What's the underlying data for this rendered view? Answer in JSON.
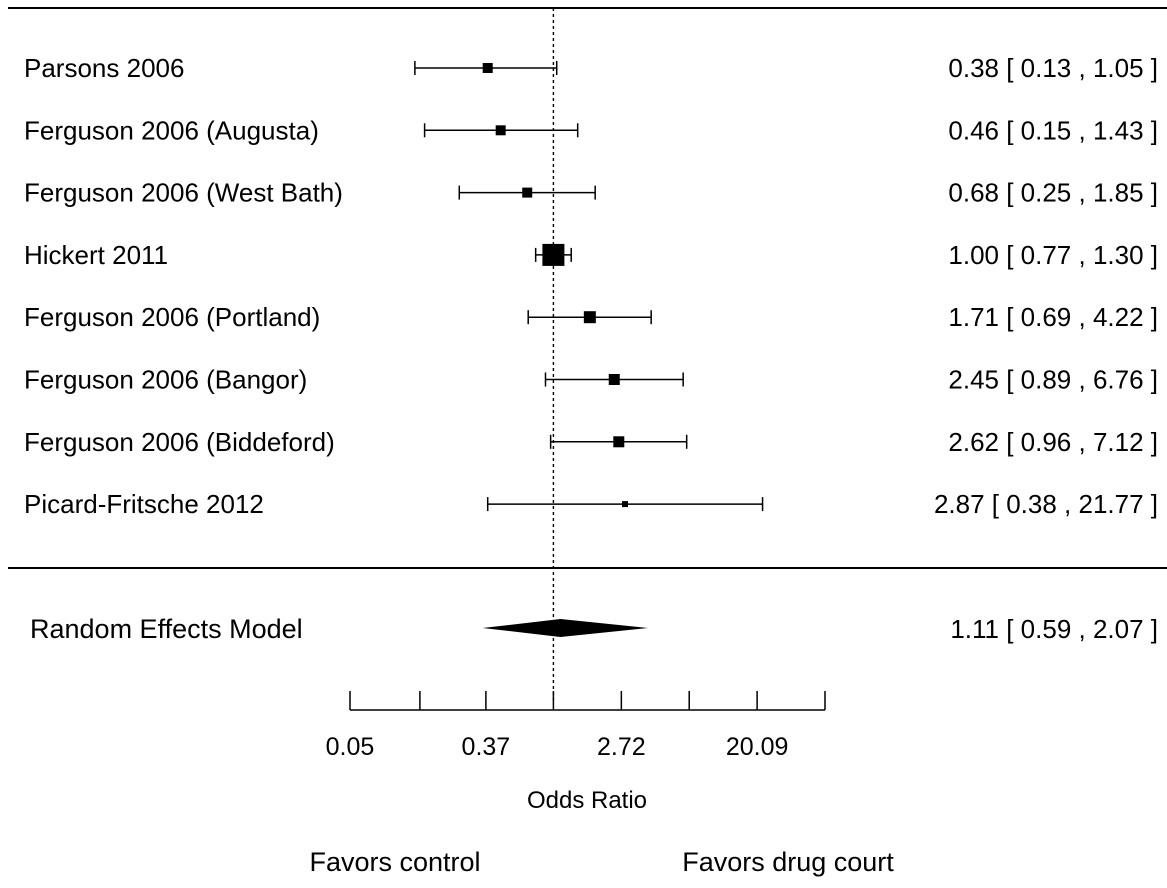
{
  "chart_data": {
    "type": "forest",
    "x_scale": "log",
    "axis_label": "Odds Ratio",
    "reference_line": 1.0,
    "xlim": [
      0.05,
      54.6
    ],
    "ticks": [
      {
        "value": 0.05,
        "label": "0.05"
      },
      {
        "value": 0.14,
        "label": ""
      },
      {
        "value": 0.37,
        "label": "0.37"
      },
      {
        "value": 1.0,
        "label": ""
      },
      {
        "value": 2.72,
        "label": "2.72"
      },
      {
        "value": 7.39,
        "label": ""
      },
      {
        "value": 20.09,
        "label": "20.09"
      },
      {
        "value": 54.6,
        "label": ""
      }
    ],
    "studies": [
      {
        "name": "Parsons 2006",
        "or": 0.38,
        "lower": 0.13,
        "upper": 1.05,
        "ci_text": "0.38 [ 0.13 ,  1.05 ]",
        "weight": 1.0
      },
      {
        "name": "Ferguson 2006 (Augusta)",
        "or": 0.46,
        "lower": 0.15,
        "upper": 1.43,
        "ci_text": "0.46 [ 0.15 ,  1.43 ]",
        "weight": 1.0
      },
      {
        "name": "Ferguson 2006 (West Bath)",
        "or": 0.68,
        "lower": 0.25,
        "upper": 1.85,
        "ci_text": "0.68 [ 0.25 ,  1.85 ]",
        "weight": 1.0
      },
      {
        "name": "Hickert 2011",
        "or": 1.0,
        "lower": 0.77,
        "upper": 1.3,
        "ci_text": "1.00 [ 0.77 ,  1.30 ]",
        "weight": 2.2
      },
      {
        "name": "Ferguson 2006 (Portland)",
        "or": 1.71,
        "lower": 0.69,
        "upper": 4.22,
        "ci_text": "1.71 [ 0.69 ,  4.22 ]",
        "weight": 1.2
      },
      {
        "name": "Ferguson 2006 (Bangor)",
        "or": 2.45,
        "lower": 0.89,
        "upper": 6.76,
        "ci_text": "2.45 [ 0.89 ,  6.76 ]",
        "weight": 1.1
      },
      {
        "name": "Ferguson 2006 (Biddeford)",
        "or": 2.62,
        "lower": 0.96,
        "upper": 7.12,
        "ci_text": "2.62 [ 0.96 ,  7.12 ]",
        "weight": 1.1
      },
      {
        "name": "Picard-Fritsche 2012",
        "or": 2.87,
        "lower": 0.38,
        "upper": 21.77,
        "ci_text": "2.87 [ 0.38 , 21.77 ]",
        "weight": 0.6
      }
    ],
    "summary": {
      "name": "Random Effects Model",
      "or": 1.11,
      "lower": 0.59,
      "upper": 2.07,
      "ci_text": "1.11 [ 0.59 ,  2.07 ]"
    },
    "favors_left": "Favors control",
    "favors_right": "Favors drug court"
  }
}
